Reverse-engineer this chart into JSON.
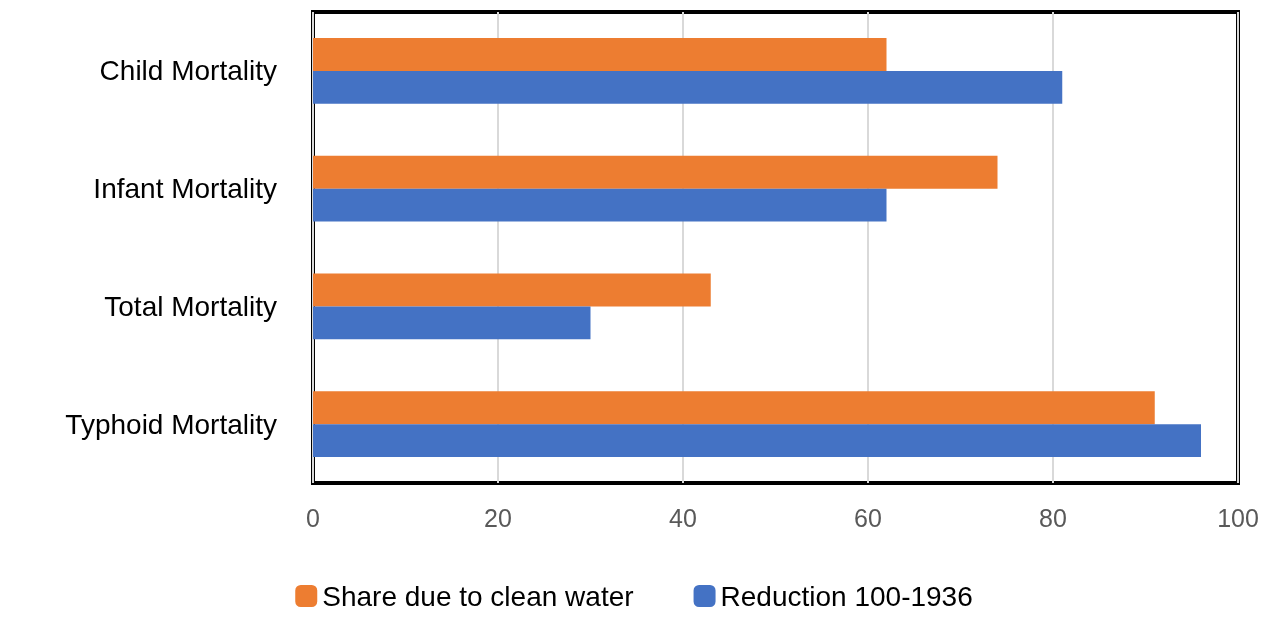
{
  "chart_data": {
    "type": "bar",
    "orientation": "horizontal",
    "categories": [
      "Child Mortality",
      "Infant Mortality",
      "Total Mortality",
      "Typhoid Mortality"
    ],
    "series": [
      {
        "name": "Share due to clean water",
        "color": "#ed7d31",
        "values": [
          62,
          74,
          43,
          91
        ]
      },
      {
        "name": "Reduction 100-1936",
        "color": "#4472c4",
        "values": [
          81,
          62,
          30,
          96
        ]
      }
    ],
    "xlim": [
      0,
      100
    ],
    "xticks": [
      0,
      20,
      40,
      60,
      80,
      100
    ],
    "grid": "x",
    "legend": "bottom"
  }
}
